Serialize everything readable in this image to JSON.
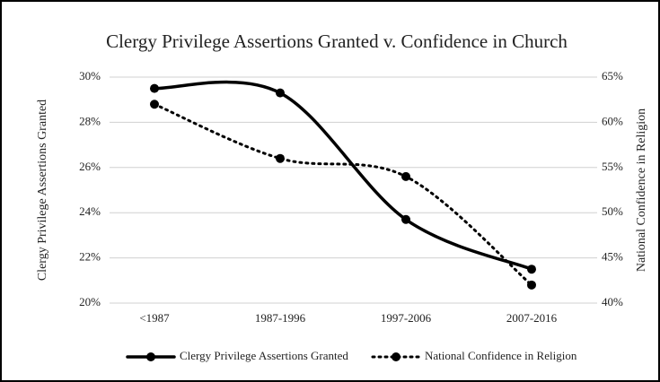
{
  "chart_data": {
    "type": "line",
    "title": "Clergy Privilege Assertions Granted v. Confidence in Church",
    "y_label": "Clergy Privilege Assertions Granted",
    "y2_label": "National Confidence in Religion",
    "categories": [
      "<1987",
      "1987-1996",
      "1997-2006",
      "2007-2016"
    ],
    "series": [
      {
        "name": "Clergy Privilege Assertions Granted",
        "color": "#000000",
        "style": "solid",
        "values": [
          29.5,
          29.3,
          23.7,
          21.5
        ]
      },
      {
        "name": "National Confidence in Religion",
        "color": "#000000",
        "style": "dotted",
        "axis": "y2",
        "values": [
          62,
          56,
          54,
          42
        ]
      }
    ],
    "ylim": [
      20,
      30
    ],
    "yticks": [
      {
        "value": 20,
        "label": "20%"
      },
      {
        "value": 22,
        "label": "22%"
      },
      {
        "value": 24,
        "label": "24%"
      },
      {
        "value": 26,
        "label": "26%"
      },
      {
        "value": 28,
        "label": "28%"
      },
      {
        "value": 30,
        "label": "30%"
      }
    ],
    "y2lim": [
      40,
      65
    ],
    "y2ticks": [
      {
        "value": 40,
        "label": "40%"
      },
      {
        "value": 45,
        "label": "45%"
      },
      {
        "value": 50,
        "label": "50%"
      },
      {
        "value": 55,
        "label": "55%"
      },
      {
        "value": 60,
        "label": "60%"
      },
      {
        "value": 65,
        "label": "65%"
      }
    ],
    "grid": true,
    "legend": "bottom"
  }
}
